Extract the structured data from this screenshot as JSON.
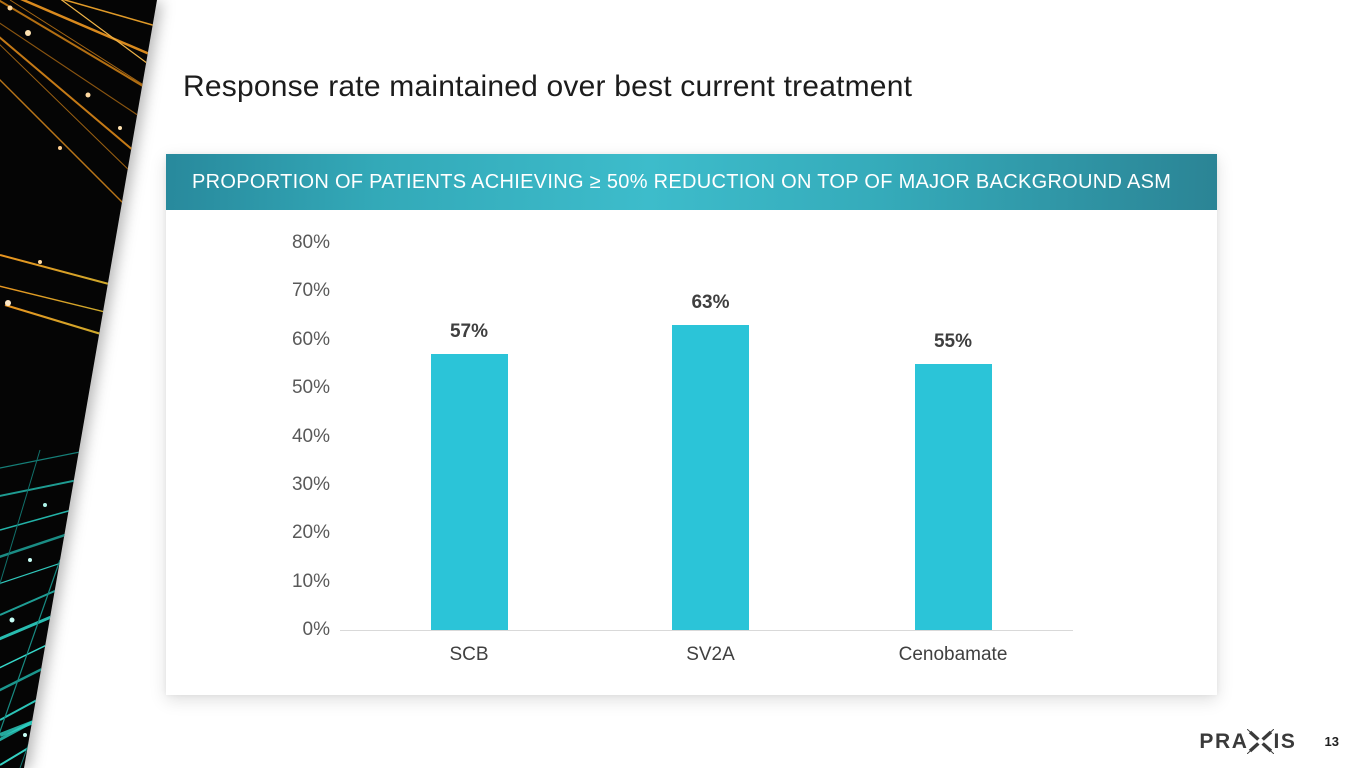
{
  "slide": {
    "title": "Response rate maintained over best current treatment"
  },
  "chart_data": {
    "type": "bar",
    "title": "PROPORTION OF PATIENTS ACHIEVING ≥ 50% REDUCTION ON TOP OF MAJOR BACKGROUND ASM",
    "categories": [
      "SCB",
      "SV2A",
      "Cenobamate"
    ],
    "values": [
      57,
      63,
      55
    ],
    "data_labels": [
      "57%",
      "63%",
      "55%"
    ],
    "xlabel": "",
    "ylabel": "",
    "ylim": [
      0,
      80
    ],
    "ytick_interval": 10,
    "yticks": [
      "0%",
      "10%",
      "20%",
      "30%",
      "40%",
      "50%",
      "60%",
      "70%",
      "80%"
    ],
    "grid": false,
    "legend": false,
    "bar_color": "#2bc4d8",
    "tick_color": "#595959",
    "data_label_color": "#3f3f3f",
    "axis_line_color": "#d9d9d9",
    "banner_gradient": [
      "#28899c",
      "#3dbccb",
      "#2b8495"
    ]
  },
  "footer": {
    "logo_text": "PRAXIS",
    "logo_left": "PRA",
    "logo_right": "IS",
    "page_number": "13"
  },
  "colors": {
    "title_text": "#1c1c1c",
    "banner_text": "#ffffff",
    "decoration_black": "#050505",
    "fiber_orange": "#d98a1e",
    "fiber_teal": "#23b3a8"
  }
}
